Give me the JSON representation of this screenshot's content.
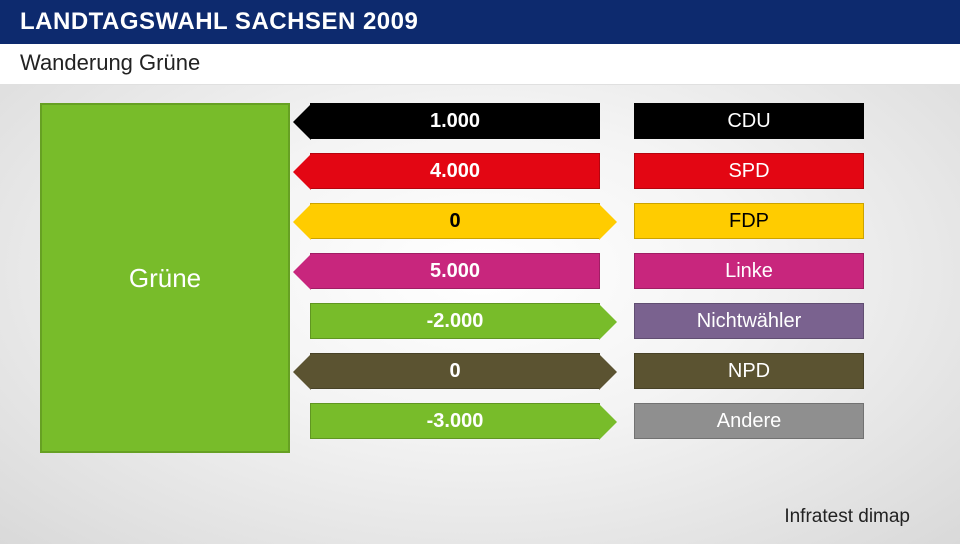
{
  "title": "LANDTAGSWAHL SACHSEN 2009",
  "subtitle": "Wanderung Grüne",
  "source": "Infratest dimap",
  "focus": {
    "label": "Grüne",
    "color": "#78bc2a",
    "text_color": "#ffffff"
  },
  "rows": [
    {
      "party": "CDU",
      "party_color": "#000000",
      "party_text": "#ffffff",
      "flow_value": "1.000",
      "flow_color": "#000000",
      "flow_text": "#ffffff",
      "direction": "in"
    },
    {
      "party": "SPD",
      "party_color": "#e30613",
      "party_text": "#ffffff",
      "flow_value": "4.000",
      "flow_color": "#e30613",
      "flow_text": "#ffffff",
      "direction": "in"
    },
    {
      "party": "FDP",
      "party_color": "#ffcc00",
      "party_text": "#000000",
      "flow_value": "0",
      "flow_color": "#ffcc00",
      "flow_text": "#000000",
      "direction": "both"
    },
    {
      "party": "Linke",
      "party_color": "#c8267d",
      "party_text": "#ffffff",
      "flow_value": "5.000",
      "flow_color": "#c8267d",
      "flow_text": "#ffffff",
      "direction": "in"
    },
    {
      "party": "Nichtwähler",
      "party_color": "#7a628f",
      "party_text": "#ffffff",
      "flow_value": "-2.000",
      "flow_color": "#78bc2a",
      "flow_text": "#ffffff",
      "direction": "out"
    },
    {
      "party": "NPD",
      "party_color": "#5b5331",
      "party_text": "#ffffff",
      "flow_value": "0",
      "flow_color": "#5b5331",
      "flow_text": "#ffffff",
      "direction": "both"
    },
    {
      "party": "Andere",
      "party_color": "#8f8f8f",
      "party_text": "#ffffff",
      "flow_value": "-3.000",
      "flow_color": "#78bc2a",
      "flow_text": "#ffffff",
      "direction": "out"
    }
  ],
  "colors": {
    "title_bg": "#0d2a6e",
    "title_text": "#ffffff",
    "subtitle_bg": "#ffffff",
    "subtitle_text": "#222222"
  }
}
